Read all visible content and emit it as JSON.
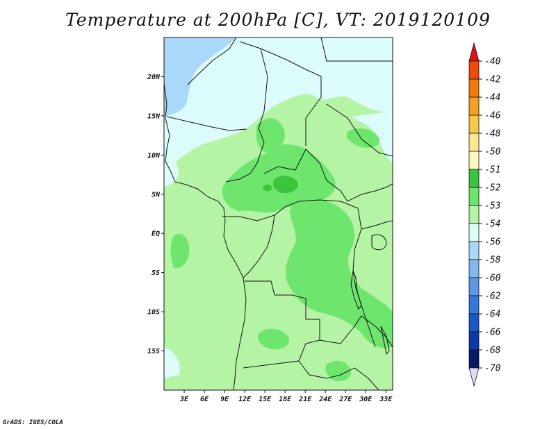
{
  "title": "Temperature at 200hPa [C], VT: 2019120109",
  "credit": "GrADS: IGES/COLA",
  "map": {
    "lon_range": [
      0,
      34
    ],
    "lat_range": [
      -20,
      25
    ],
    "lon_ticks": [
      "3E",
      "6E",
      "9E",
      "12E",
      "15E",
      "18E",
      "21E",
      "24E",
      "27E",
      "30E",
      "33E"
    ],
    "lat_ticks": [
      "20N",
      "15N",
      "10N",
      "5N",
      "EQ",
      "5S",
      "10S",
      "15S"
    ]
  },
  "colorbar": {
    "labels": [
      "-40",
      "-42",
      "-44",
      "-46",
      "-48",
      "-50",
      "-51",
      "-52",
      "-53",
      "-54",
      "-56",
      "-58",
      "-60",
      "-62",
      "-64",
      "-66",
      "-68",
      "-70"
    ],
    "colors": [
      "#e01010",
      "#f04a0a",
      "#f27a0a",
      "#f5a020",
      "#f8c848",
      "#fbe890",
      "#fdf8c0",
      "#3cc43c",
      "#6ee66e",
      "#b4f4a4",
      "#dcfcfc",
      "#aad8f8",
      "#82b8f0",
      "#5a98e8",
      "#3478dc",
      "#1a58c8",
      "#0a3aa8",
      "#061a6a",
      "#e0dcf8"
    ]
  },
  "legend_colors": {
    "le_-54": "#dcfcfc",
    "-54_-53": "#b4f4a4",
    "-53_-52": "#6ee66e",
    "-52_-51": "#3cc43c",
    "-58_-56": "#aad8f8"
  }
}
